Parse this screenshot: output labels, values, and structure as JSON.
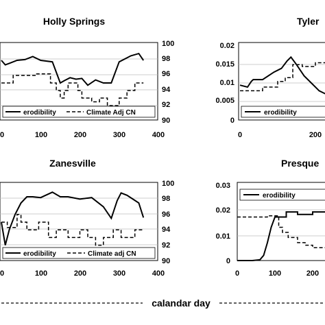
{
  "x_label": "calandar day",
  "chart_data": [
    {
      "type": "line",
      "title": "Holly Springs",
      "xlim": [
        0,
        400
      ],
      "xticks": [
        "0",
        "100",
        "200",
        "300",
        "400"
      ],
      "y2lim": [
        90,
        100
      ],
      "y2ticks": [
        "90",
        "92",
        "94",
        "96",
        "98",
        "100"
      ],
      "legend": [
        "erodibility",
        "Climate Adj CN"
      ],
      "series": [
        {
          "name": "erodibility",
          "style": "solid",
          "x": [
            0,
            10,
            20,
            40,
            60,
            80,
            100,
            130,
            150,
            160,
            175,
            190,
            205,
            220,
            240,
            260,
            280,
            300,
            330,
            350,
            362
          ],
          "y": [
            98.0,
            97.4,
            97.6,
            98.0,
            98.1,
            98.5,
            98.0,
            97.8,
            95.0,
            95.3,
            95.7,
            95.5,
            95.6,
            94.7,
            95.4,
            95.0,
            95.0,
            97.8,
            98.6,
            98.9,
            98.0
          ]
        },
        {
          "name": "Climate Adj CN",
          "style": "dashed",
          "x": [
            0,
            30,
            30,
            90,
            90,
            125,
            125,
            140,
            140,
            150,
            150,
            160,
            160,
            170,
            170,
            195,
            195,
            205,
            205,
            230,
            230,
            250,
            250,
            270,
            270,
            300,
            300,
            320,
            320,
            340,
            340,
            362
          ],
          "y": [
            95,
            95,
            96,
            96,
            96.2,
            96.2,
            95,
            95,
            94,
            94,
            93,
            93,
            94,
            94,
            95,
            95,
            94,
            94,
            93,
            93,
            92.5,
            92.5,
            93,
            93,
            92,
            92,
            93,
            93,
            94,
            94,
            95,
            95
          ]
        }
      ]
    },
    {
      "type": "line",
      "title": "Tyler",
      "ylim": [
        0,
        0.02
      ],
      "yticks": [
        "0",
        "0.005",
        "0.01",
        "0.015",
        "0.02"
      ],
      "xlim": [
        0,
        400
      ],
      "xticks": [
        "0",
        "200"
      ],
      "legend": [
        "erodibility"
      ],
      "series": [
        {
          "name": "erodibility",
          "style": "solid",
          "x": [
            0,
            20,
            30,
            35,
            60,
            90,
            110,
            125,
            135,
            150,
            170,
            190,
            210,
            230,
            260
          ],
          "y": [
            0.0095,
            0.009,
            0.0105,
            0.011,
            0.011,
            0.013,
            0.014,
            0.016,
            0.017,
            0.015,
            0.012,
            0.01,
            0.008,
            0.007,
            0.007
          ]
        },
        {
          "name": "",
          "style": "dashed",
          "x": [
            0,
            60,
            60,
            100,
            100,
            120,
            120,
            140,
            140,
            165,
            165,
            200,
            200,
            230,
            230,
            260
          ],
          "y": [
            0.008,
            0.008,
            0.009,
            0.009,
            0.0105,
            0.0105,
            0.0115,
            0.0115,
            0.015,
            0.015,
            0.0145,
            0.0145,
            0.0155,
            0.0155,
            0.013,
            0.013
          ]
        }
      ]
    },
    {
      "type": "line",
      "title": "Zanesville",
      "xlim": [
        0,
        400
      ],
      "xticks": [
        "0",
        "100",
        "200",
        "300",
        "400"
      ],
      "y2lim": [
        90,
        100
      ],
      "y2ticks": [
        "90",
        "92",
        "94",
        "96",
        "98",
        "100"
      ],
      "legend": [
        "erodibility",
        "Climate adj CN"
      ],
      "series": [
        {
          "name": "erodibility",
          "style": "solid",
          "x": [
            0,
            10,
            20,
            35,
            50,
            65,
            80,
            100,
            130,
            150,
            170,
            200,
            230,
            260,
            280,
            295,
            305,
            320,
            335,
            350,
            362
          ],
          "y": [
            95.0,
            92.0,
            94.0,
            96.0,
            97.5,
            98.3,
            98.3,
            98.2,
            98.9,
            98.3,
            98.3,
            98.0,
            98.2,
            97.0,
            95.5,
            97.8,
            98.8,
            98.5,
            98.0,
            97.5,
            95.6
          ]
        },
        {
          "name": "Climate adj CN",
          "style": "dashed",
          "x": [
            0,
            15,
            15,
            40,
            40,
            50,
            50,
            65,
            65,
            95,
            95,
            120,
            120,
            140,
            140,
            170,
            170,
            200,
            200,
            220,
            220,
            240,
            240,
            260,
            260,
            285,
            285,
            305,
            305,
            340,
            340,
            362
          ],
          "y": [
            95,
            95,
            94.3,
            94.3,
            96,
            96,
            95,
            95,
            94,
            94,
            95,
            95,
            93,
            93,
            94,
            94,
            93,
            93,
            94,
            94,
            93,
            93,
            92,
            92,
            93,
            93,
            94,
            94,
            93,
            93,
            94,
            94
          ]
        }
      ]
    },
    {
      "type": "line",
      "title": "Presque",
      "ylim": [
        0,
        0.03
      ],
      "yticks": [
        "0",
        "0.01",
        "0.02",
        "0.03"
      ],
      "xlim": [
        0,
        400
      ],
      "xticks": [
        "0",
        "100",
        "200"
      ],
      "legend": [
        "erodibility"
      ],
      "series": [
        {
          "name": "erodibility",
          "style": "solid",
          "x": [
            0,
            40,
            60,
            70,
            80,
            90,
            100,
            110,
            130,
            130,
            160,
            160,
            200,
            200,
            260
          ],
          "y": [
            0,
            0,
            0.0003,
            0.002,
            0.007,
            0.013,
            0.017,
            0.017,
            0.017,
            0.019,
            0.019,
            0.018,
            0.018,
            0.019,
            0.019
          ]
        },
        {
          "name": "",
          "style": "dashed",
          "x": [
            0,
            80,
            80,
            110,
            110,
            120,
            120,
            135,
            135,
            160,
            160,
            180,
            180,
            200,
            200,
            260
          ],
          "y": [
            0.017,
            0.017,
            0.0175,
            0.0175,
            0.013,
            0.013,
            0.011,
            0.011,
            0.009,
            0.009,
            0.007,
            0.007,
            0.006,
            0.006,
            0.005,
            0.005
          ]
        }
      ]
    }
  ]
}
